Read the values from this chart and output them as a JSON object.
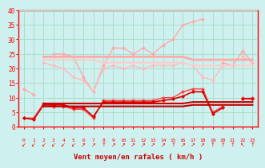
{
  "x": [
    0,
    1,
    2,
    3,
    4,
    5,
    6,
    7,
    8,
    9,
    10,
    11,
    12,
    13,
    14,
    15,
    16,
    17,
    18,
    19,
    20,
    21,
    22,
    23
  ],
  "series": [
    {
      "label": "gust_light",
      "color": "#ffaaaa",
      "lw": 1.0,
      "marker": "D",
      "ms": 2.2,
      "values": [
        13,
        11,
        null,
        25,
        25,
        24,
        17,
        12,
        21,
        27,
        27,
        25,
        27,
        25,
        28,
        30,
        35,
        36,
        37,
        null,
        22,
        21,
        26,
        22
      ]
    },
    {
      "label": "avg_light_sloped",
      "color": "#ffbbbb",
      "lw": 1.0,
      "marker": "D",
      "ms": 2.2,
      "values": [
        null,
        null,
        22,
        21,
        20,
        17,
        16,
        12,
        20,
        21,
        20,
        21,
        20,
        21,
        21,
        21,
        22,
        21,
        17,
        16,
        21,
        null,
        24,
        22
      ]
    },
    {
      "label": "avg_light_flat1",
      "color": "#ffaaaa",
      "lw": 2.0,
      "marker": null,
      "ms": 0,
      "values": [
        null,
        null,
        24,
        24,
        24,
        24,
        24,
        24,
        24,
        24,
        24,
        24,
        24,
        24,
        24,
        24,
        24,
        23,
        23,
        23,
        23,
        23,
        23,
        23
      ]
    },
    {
      "label": "avg_light_flat2",
      "color": "#ffcccc",
      "lw": 1.5,
      "marker": null,
      "ms": 0,
      "values": [
        null,
        null,
        23,
        23,
        23,
        23,
        23,
        23,
        22,
        22,
        22,
        22,
        22,
        22,
        22,
        22,
        22,
        21,
        21,
        21,
        21,
        21,
        21,
        21
      ]
    },
    {
      "label": "gust_red",
      "color": "#ff4444",
      "lw": 1.0,
      "marker": "D",
      "ms": 2.2,
      "values": [
        3,
        3,
        8,
        7,
        7,
        6,
        6,
        3,
        9,
        9,
        9,
        9,
        9,
        9,
        10,
        10,
        12,
        13,
        13,
        5,
        7,
        null,
        10,
        10
      ]
    },
    {
      "label": "mean_red_line",
      "color": "#dd0000",
      "lw": 1.2,
      "marker": "D",
      "ms": 2.2,
      "values": [
        3,
        2.5,
        7.5,
        7.5,
        7.5,
        6.5,
        6.5,
        3.5,
        8.5,
        8.5,
        8.5,
        8.5,
        8.5,
        8.5,
        9,
        9.5,
        10.5,
        12,
        12,
        4.5,
        6.5,
        null,
        9.5,
        9.5
      ]
    },
    {
      "label": "avg_red_flat",
      "color": "#cc0000",
      "lw": 1.5,
      "marker": null,
      "ms": 0,
      "values": [
        null,
        null,
        8,
        8,
        8,
        8,
        8,
        8,
        8,
        8,
        8,
        8,
        8,
        8,
        8,
        8,
        8,
        8.5,
        8.5,
        8.5,
        8.5,
        8.5,
        8.5,
        8.5
      ]
    },
    {
      "label": "avg_red_flat2",
      "color": "#bb0000",
      "lw": 1.5,
      "marker": null,
      "ms": 0,
      "values": [
        null,
        null,
        7,
        7,
        7,
        7,
        7,
        7,
        7,
        7,
        7,
        7,
        7,
        7,
        7,
        7,
        7,
        7.5,
        7.5,
        7.5,
        7.5,
        7.5,
        7.5,
        7.5
      ]
    }
  ],
  "wind_dirs": [
    "SW",
    "SW",
    "SW",
    "SW",
    "SW",
    "SW",
    "NE",
    "NE",
    "N",
    "NE",
    "NE",
    "NE",
    "NE",
    "NE",
    "NE",
    "N",
    "NE",
    "NE",
    "NE",
    "N",
    "N",
    "N",
    "NW",
    "N"
  ],
  "arrow_map": {
    "N": "↑",
    "NE": "↗",
    "E": "→",
    "SE": "↘",
    "S": "↓",
    "SW": "↙",
    "W": "←",
    "NW": "↖"
  },
  "xlabel": "Vent moyen/en rafales ( km/h )",
  "ylim": [
    0,
    40
  ],
  "xlim": [
    -0.5,
    23.5
  ],
  "yticks": [
    0,
    5,
    10,
    15,
    20,
    25,
    30,
    35,
    40
  ],
  "xticks": [
    0,
    1,
    2,
    3,
    4,
    5,
    6,
    7,
    8,
    9,
    10,
    11,
    12,
    13,
    14,
    15,
    16,
    17,
    18,
    19,
    20,
    21,
    22,
    23
  ],
  "bg_color": "#cef0ee",
  "grid_color": "#aaddcc",
  "axis_color": "#ff0000",
  "label_color": "#cc0000"
}
